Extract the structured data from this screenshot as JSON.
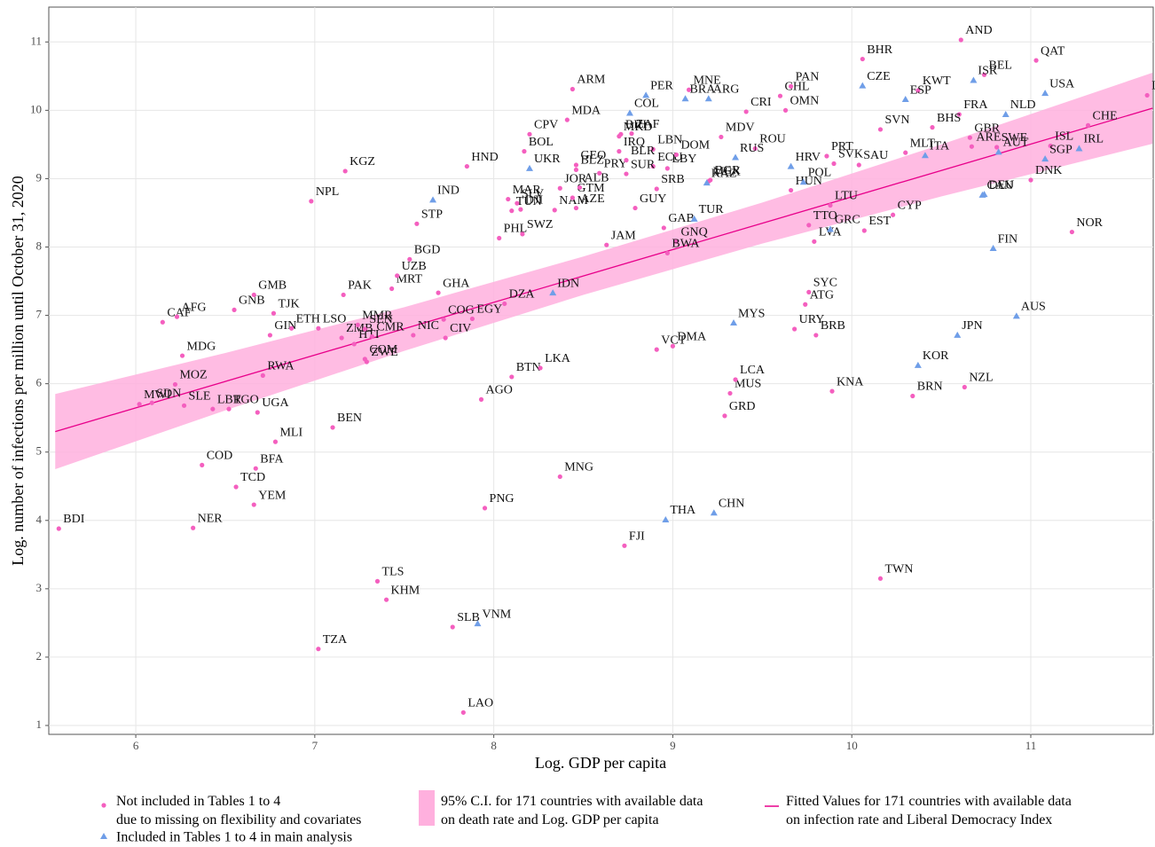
{
  "chart_data": {
    "type": "scatter",
    "xlabel": "Log. GDP per capita",
    "ylabel": "Log. number of infections per million until October 31, 2020",
    "xlim": [
      5.514,
      11.684
    ],
    "ylim": [
      0.87,
      11.51
    ],
    "xticks": [
      6,
      7,
      8,
      9,
      10,
      11
    ],
    "yticks": [
      1,
      2,
      3,
      4,
      5,
      6,
      7,
      8,
      9,
      10,
      11
    ],
    "grid": true,
    "band": {
      "name": "95% C.I. for 171 countries with available data\non death rate and Log. GDP per capita",
      "color": "#ffb0de",
      "x": [
        5.55,
        6.5,
        7.5,
        8.5,
        9.5,
        10.5,
        11.68
      ],
      "lower": [
        4.75,
        5.61,
        6.48,
        7.3,
        8.05,
        8.74,
        9.51
      ],
      "upper": [
        5.85,
        6.45,
        7.12,
        7.86,
        8.65,
        9.5,
        10.55
      ]
    },
    "fit": {
      "name": "Fitted Values for 171 countries with available data\non infection rate and Liberal Democracy Index",
      "color": "#e8008a",
      "x": [
        5.55,
        11.68
      ],
      "values": [
        5.3,
        10.03
      ]
    },
    "series": [
      {
        "name": "Not included in Tables 1 to 4\ndue to missing on flexibility and covariates",
        "color": "#f45fbf",
        "marker": "circle",
        "labels": [
          "BDI",
          "NER",
          "COD",
          "TCD",
          "YEM",
          "BFA",
          "MLI",
          "UGA",
          "TGO",
          "LBR",
          "SLE",
          "SDN",
          "MWI",
          "MOZ",
          "RWA",
          "MDG",
          "CAF",
          "AFG",
          "GNB",
          "GMB",
          "TJK",
          "GIN",
          "ETH",
          "LSO",
          "PAK",
          "ZMB",
          "MMR",
          "HTI",
          "SEN",
          "COM",
          "ZWE",
          "CMR",
          "NIC",
          "CIV",
          "COG",
          "EGY",
          "DZA",
          "BEN",
          "TZA",
          "TLS",
          "KHM",
          "SLB",
          "LAO",
          "PNG",
          "MNG",
          "FJI",
          "AGO",
          "BTN",
          "LKA",
          "VCT",
          "DMA",
          "MUS",
          "LCA",
          "GRD",
          "URY",
          "BRB",
          "ATG",
          "SYC",
          "KNA",
          "BRN",
          "NZL",
          "TWN",
          "NOR",
          "MRT",
          "UZB",
          "BGD",
          "NPL",
          "KGZ",
          "HND",
          "GHA",
          "STP",
          "PHL",
          "SWZ",
          "TUN",
          "DJI",
          "SLV",
          "MAR",
          "JOR",
          "NAM",
          "GTM",
          "ALB",
          "AZE",
          "GEO",
          "BLZ",
          "PRY",
          "IRQ",
          "MKD",
          "BIH",
          "CPV",
          "BOL",
          "MDA",
          "ARM",
          "ZAF",
          "LBN",
          "BLR",
          "ECU",
          "SUR",
          "SRB",
          "LBY",
          "GUY",
          "JAM",
          "GAB",
          "GNQ",
          "BWA",
          "DOM",
          "MDV",
          "BGR",
          "MEX",
          "HUN",
          "MNE",
          "CRI",
          "ROU",
          "CHL",
          "PAN",
          "OMN",
          "PRT",
          "SVK",
          "SAU",
          "LTU",
          "TTO",
          "LVA",
          "EST",
          "CYP",
          "MLT",
          "SVN",
          "BHR",
          "KWT",
          "AND",
          "QAT",
          "BEL",
          "FRA",
          "BHS",
          "GBR",
          "ARE",
          "SWE",
          "ISL",
          "CHE",
          "LUX",
          "DNK"
        ],
        "x": [
          5.57,
          6.32,
          6.37,
          6.56,
          6.66,
          6.67,
          6.78,
          6.68,
          6.52,
          6.43,
          6.27,
          6.09,
          6.02,
          6.22,
          6.71,
          6.26,
          6.15,
          6.23,
          6.55,
          6.66,
          6.77,
          6.75,
          6.87,
          7.02,
          7.16,
          7.15,
          7.24,
          7.22,
          7.28,
          7.28,
          7.29,
          7.32,
          7.55,
          7.73,
          7.72,
          7.88,
          8.06,
          7.1,
          7.02,
          7.35,
          7.4,
          7.77,
          7.83,
          7.95,
          8.37,
          8.73,
          7.93,
          8.1,
          8.26,
          8.91,
          9.0,
          9.32,
          9.35,
          9.29,
          9.68,
          9.8,
          9.74,
          9.76,
          9.89,
          10.34,
          10.63,
          10.16,
          11.23,
          7.43,
          7.46,
          7.53,
          6.98,
          7.17,
          7.85,
          7.69,
          7.57,
          8.03,
          8.16,
          8.1,
          8.15,
          8.13,
          8.08,
          8.37,
          8.34,
          8.44,
          8.48,
          8.46,
          8.46,
          8.46,
          8.59,
          8.7,
          8.7,
          8.71,
          8.2,
          8.17,
          8.41,
          8.44,
          8.77,
          8.89,
          8.74,
          8.89,
          8.74,
          8.91,
          8.97,
          8.79,
          8.63,
          8.95,
          9.02,
          8.97,
          9.02,
          9.27,
          9.21,
          9.2,
          9.66,
          9.09,
          9.41,
          9.46,
          9.6,
          9.66,
          9.63,
          9.86,
          9.9,
          10.04,
          9.88,
          9.76,
          9.79,
          10.07,
          10.23,
          10.3,
          10.16,
          10.06,
          10.37,
          10.61,
          11.03,
          10.74,
          10.6,
          10.45,
          10.66,
          10.67,
          10.81,
          11.11,
          11.32,
          11.65,
          11.0
        ],
        "values": [
          3.88,
          3.89,
          4.81,
          4.49,
          4.23,
          4.76,
          5.15,
          5.58,
          5.63,
          5.63,
          5.68,
          5.72,
          5.7,
          5.99,
          6.12,
          6.41,
          6.9,
          6.98,
          7.08,
          7.3,
          7.03,
          6.71,
          6.81,
          6.81,
          7.3,
          6.67,
          6.86,
          6.58,
          6.8,
          6.36,
          6.32,
          6.69,
          6.71,
          6.67,
          6.94,
          6.95,
          7.17,
          5.36,
          2.12,
          3.11,
          2.84,
          2.44,
          1.19,
          4.18,
          4.64,
          3.63,
          5.77,
          6.1,
          6.23,
          6.5,
          6.55,
          5.86,
          6.06,
          5.53,
          6.8,
          6.71,
          7.16,
          7.34,
          5.89,
          5.82,
          5.95,
          3.15,
          8.22,
          7.39,
          7.58,
          7.82,
          8.67,
          9.11,
          9.18,
          7.33,
          8.34,
          8.13,
          8.19,
          8.53,
          8.55,
          8.64,
          8.7,
          8.86,
          8.54,
          8.72,
          8.87,
          8.57,
          9.2,
          9.13,
          9.08,
          9.4,
          9.62,
          9.65,
          9.65,
          9.4,
          9.86,
          10.31,
          9.66,
          9.43,
          9.27,
          9.18,
          9.07,
          8.85,
          9.15,
          8.57,
          8.03,
          8.28,
          8.08,
          7.91,
          9.35,
          9.61,
          8.98,
          8.96,
          8.83,
          10.3,
          9.98,
          9.44,
          10.21,
          10.35,
          10.0,
          9.33,
          9.22,
          9.2,
          8.61,
          8.32,
          8.08,
          8.24,
          8.47,
          9.38,
          9.72,
          10.75,
          10.29,
          11.03,
          10.73,
          10.52,
          9.94,
          9.75,
          9.6,
          9.47,
          9.46,
          9.48,
          9.78,
          10.22,
          8.98
        ]
      },
      {
        "name": "Included in Tables 1 to 4 in main analysis",
        "color": "#6f9ee8",
        "marker": "triangle",
        "labels": [
          "IND",
          "IDN",
          "UKR",
          "COL",
          "PER",
          "BRA",
          "ARG",
          "KAZ",
          "RUS",
          "TUR",
          "HRV",
          "POL",
          "GRC",
          "MYS",
          "THA",
          "CHN",
          "VNM",
          "CZE",
          "ESP",
          "ISR",
          "USA",
          "NLD",
          "ITA",
          "AUT",
          "SGP",
          "IRL",
          "DEU",
          "CAN",
          "FIN",
          "AUS",
          "JPN",
          "KOR"
        ],
        "x": [
          7.66,
          8.33,
          8.2,
          8.76,
          8.85,
          9.07,
          9.2,
          9.19,
          9.35,
          9.12,
          9.66,
          9.73,
          9.88,
          9.34,
          8.96,
          9.23,
          7.91,
          10.06,
          10.3,
          10.68,
          11.08,
          10.86,
          10.41,
          10.82,
          11.08,
          11.27,
          10.74,
          10.73,
          10.79,
          10.92,
          10.59,
          10.37
        ],
        "values": [
          8.69,
          7.33,
          9.15,
          9.96,
          10.22,
          10.17,
          10.17,
          8.94,
          9.31,
          8.41,
          9.18,
          8.95,
          8.26,
          6.89,
          4.01,
          4.11,
          2.49,
          10.36,
          10.16,
          10.44,
          10.25,
          9.94,
          9.34,
          9.39,
          9.29,
          9.44,
          8.77,
          8.76,
          7.98,
          6.99,
          6.71,
          6.27
        ]
      }
    ]
  }
}
